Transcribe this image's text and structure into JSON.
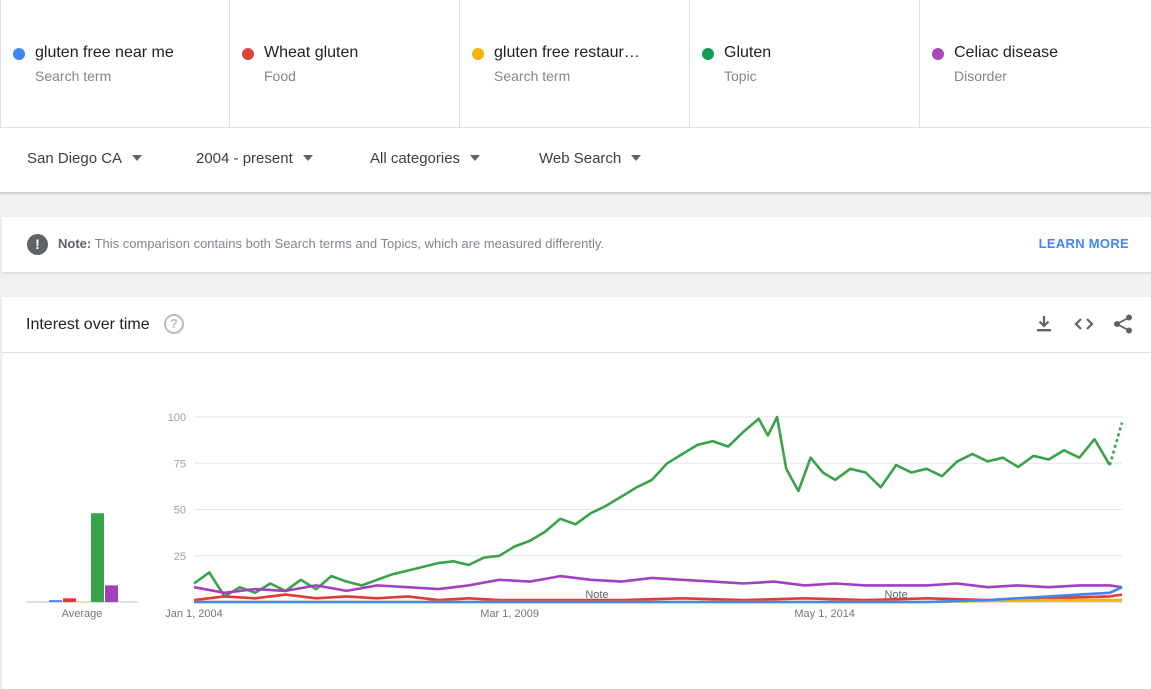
{
  "terms": [
    {
      "name": "gluten free near me",
      "kind": "Search term",
      "color": "#4285f4"
    },
    {
      "name": "Wheat gluten",
      "kind": "Food",
      "color": "#db4437"
    },
    {
      "name": "gluten free restaur…",
      "kind": "Search term",
      "color": "#f4b400"
    },
    {
      "name": "Gluten",
      "kind": "Topic",
      "color": "#0f9d58"
    },
    {
      "name": "Celiac disease",
      "kind": "Disorder",
      "color": "#ab47bc"
    }
  ],
  "filters": {
    "location": "San Diego CA",
    "time": "2004 - present",
    "category": "All categories",
    "search_type": "Web Search"
  },
  "note": {
    "bold": "Note:",
    "text": " This comparison contains both Search terms and Topics, which are measured differently.",
    "link": "LEARN MORE"
  },
  "card": {
    "title": "Interest over time",
    "help": "?",
    "actions": [
      "download-icon",
      "embed-icon",
      "share-icon"
    ]
  },
  "chart_data": {
    "type": "line",
    "ylim": [
      0,
      100
    ],
    "yticks": [
      25,
      50,
      75,
      100
    ],
    "xticks": [
      {
        "label": "Jan 1, 2004",
        "year": 2004.0
      },
      {
        "label": "Mar 1, 2009",
        "year": 2009.17
      },
      {
        "label": "May 1, 2014",
        "year": 2014.33
      }
    ],
    "x_range": [
      2004.0,
      2019.2
    ],
    "notes": [
      {
        "label": "Note",
        "year": 2010.6
      },
      {
        "label": "Note",
        "year": 2015.5
      }
    ],
    "average_label": "Average",
    "averages": [
      {
        "series": "gluten free near me",
        "value": 1
      },
      {
        "series": "Wheat gluten",
        "value": 2
      },
      {
        "series": "gluten free restaur…",
        "value": 0
      },
      {
        "series": "Gluten",
        "value": 48
      },
      {
        "series": "Celiac disease",
        "value": 9
      }
    ],
    "series": [
      {
        "name": "Gluten",
        "color": "#3aa349",
        "points": [
          [
            2004.0,
            10
          ],
          [
            2004.25,
            16
          ],
          [
            2004.5,
            3
          ],
          [
            2004.75,
            8
          ],
          [
            2005.0,
            5
          ],
          [
            2005.25,
            10
          ],
          [
            2005.5,
            6
          ],
          [
            2005.75,
            12
          ],
          [
            2006.0,
            7
          ],
          [
            2006.25,
            14
          ],
          [
            2006.5,
            11
          ],
          [
            2006.75,
            9
          ],
          [
            2007.0,
            12
          ],
          [
            2007.25,
            15
          ],
          [
            2007.5,
            17
          ],
          [
            2007.75,
            19
          ],
          [
            2008.0,
            21
          ],
          [
            2008.25,
            22
          ],
          [
            2008.5,
            20
          ],
          [
            2008.75,
            24
          ],
          [
            2009.0,
            25
          ],
          [
            2009.25,
            30
          ],
          [
            2009.5,
            33
          ],
          [
            2009.75,
            38
          ],
          [
            2010.0,
            45
          ],
          [
            2010.25,
            42
          ],
          [
            2010.5,
            48
          ],
          [
            2010.75,
            52
          ],
          [
            2011.0,
            57
          ],
          [
            2011.25,
            62
          ],
          [
            2011.5,
            66
          ],
          [
            2011.75,
            75
          ],
          [
            2012.0,
            80
          ],
          [
            2012.25,
            85
          ],
          [
            2012.5,
            87
          ],
          [
            2012.75,
            84
          ],
          [
            2013.0,
            92
          ],
          [
            2013.25,
            99
          ],
          [
            2013.4,
            90
          ],
          [
            2013.55,
            100
          ],
          [
            2013.7,
            72
          ],
          [
            2013.9,
            60
          ],
          [
            2014.1,
            78
          ],
          [
            2014.3,
            70
          ],
          [
            2014.5,
            66
          ],
          [
            2014.75,
            72
          ],
          [
            2015.0,
            70
          ],
          [
            2015.25,
            62
          ],
          [
            2015.5,
            74
          ],
          [
            2015.75,
            70
          ],
          [
            2016.0,
            72
          ],
          [
            2016.25,
            68
          ],
          [
            2016.5,
            76
          ],
          [
            2016.75,
            80
          ],
          [
            2017.0,
            76
          ],
          [
            2017.25,
            78
          ],
          [
            2017.5,
            73
          ],
          [
            2017.75,
            79
          ],
          [
            2018.0,
            77
          ],
          [
            2018.25,
            82
          ],
          [
            2018.5,
            78
          ],
          [
            2018.75,
            88
          ],
          [
            2019.0,
            74
          ]
        ],
        "projected": [
          [
            2019.0,
            74
          ],
          [
            2019.2,
            97
          ]
        ]
      },
      {
        "name": "Celiac disease",
        "color": "#a43fbf",
        "points": [
          [
            2004.0,
            8
          ],
          [
            2004.5,
            5
          ],
          [
            2005.0,
            7
          ],
          [
            2005.5,
            6
          ],
          [
            2006.0,
            9
          ],
          [
            2006.5,
            6
          ],
          [
            2007.0,
            9
          ],
          [
            2007.5,
            8
          ],
          [
            2008.0,
            7
          ],
          [
            2008.5,
            9
          ],
          [
            2009.0,
            12
          ],
          [
            2009.5,
            11
          ],
          [
            2010.0,
            14
          ],
          [
            2010.5,
            12
          ],
          [
            2011.0,
            11
          ],
          [
            2011.5,
            13
          ],
          [
            2012.0,
            12
          ],
          [
            2012.5,
            11
          ],
          [
            2013.0,
            10
          ],
          [
            2013.5,
            11
          ],
          [
            2014.0,
            9
          ],
          [
            2014.5,
            10
          ],
          [
            2015.0,
            9
          ],
          [
            2015.5,
            9
          ],
          [
            2016.0,
            9
          ],
          [
            2016.5,
            10
          ],
          [
            2017.0,
            8
          ],
          [
            2017.5,
            9
          ],
          [
            2018.0,
            8
          ],
          [
            2018.5,
            9
          ],
          [
            2019.0,
            9
          ],
          [
            2019.2,
            8
          ]
        ]
      },
      {
        "name": "Wheat gluten",
        "color": "#e53935",
        "points": [
          [
            2004.0,
            1
          ],
          [
            2004.5,
            3
          ],
          [
            2005.0,
            2
          ],
          [
            2005.5,
            4
          ],
          [
            2006.0,
            2
          ],
          [
            2006.5,
            3
          ],
          [
            2007.0,
            2
          ],
          [
            2007.5,
            3
          ],
          [
            2008.0,
            1
          ],
          [
            2008.5,
            2
          ],
          [
            2009.0,
            1
          ],
          [
            2010.0,
            1
          ],
          [
            2011.0,
            1
          ],
          [
            2012.0,
            2
          ],
          [
            2013.0,
            1
          ],
          [
            2014.0,
            2
          ],
          [
            2015.0,
            1
          ],
          [
            2016.0,
            2
          ],
          [
            2017.0,
            1
          ],
          [
            2018.0,
            2
          ],
          [
            2019.0,
            3
          ],
          [
            2019.2,
            4
          ]
        ]
      },
      {
        "name": "gluten free restaur…",
        "color": "#f4b400",
        "points": [
          [
            2004.0,
            0
          ],
          [
            2008.0,
            0
          ],
          [
            2012.0,
            0
          ],
          [
            2016.0,
            0
          ],
          [
            2018.0,
            1
          ],
          [
            2019.0,
            1
          ],
          [
            2019.2,
            1
          ]
        ]
      },
      {
        "name": "gluten free near me",
        "color": "#4285f4",
        "points": [
          [
            2004.0,
            0
          ],
          [
            2016.0,
            0
          ],
          [
            2017.0,
            1
          ],
          [
            2018.0,
            3
          ],
          [
            2018.5,
            4
          ],
          [
            2019.0,
            5
          ],
          [
            2019.2,
            8
          ]
        ]
      }
    ]
  }
}
